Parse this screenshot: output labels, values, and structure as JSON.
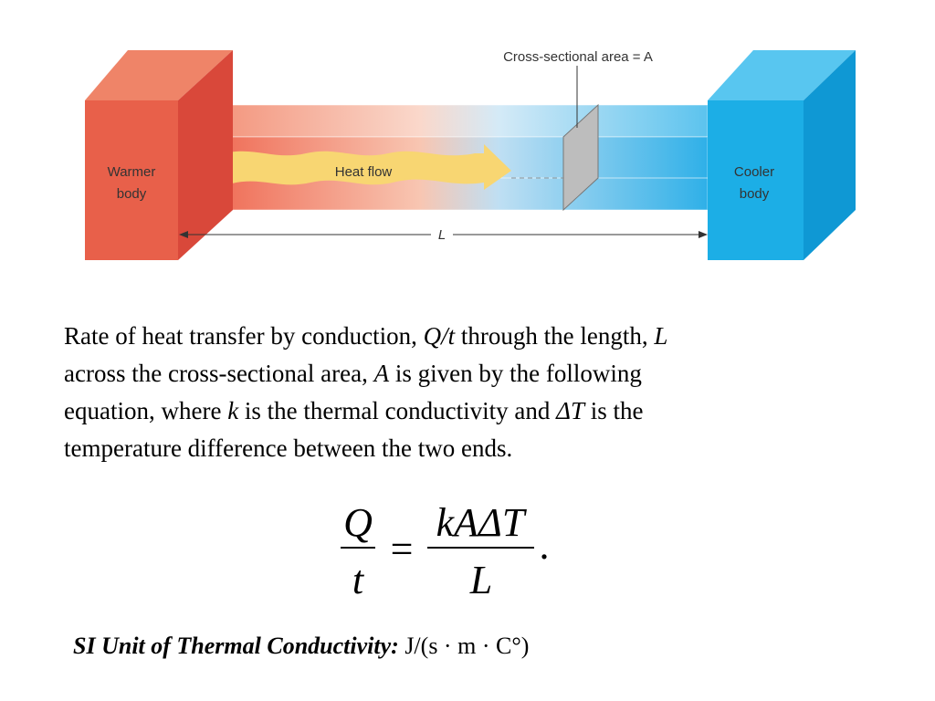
{
  "diagram": {
    "area_label": "Cross-sectional area = A",
    "warmer_label": [
      "Warmer",
      "body"
    ],
    "flow_label": "Heat flow",
    "cooler_label": [
      "Cooler",
      "body"
    ],
    "length_label": "L"
  },
  "paragraph": {
    "lines": [
      [
        "Rate of heat transfer by conduction, ",
        "Q/t",
        " through the length, ",
        "L"
      ],
      [
        "across the cross-sectional area, ",
        "A",
        " is given by the following"
      ],
      [
        "equation, where ",
        "k",
        " is the thermal conductivity and ",
        "ΔT",
        " is the"
      ],
      [
        "temperature difference between the two ends."
      ]
    ]
  },
  "equation": {
    "left_numerator": "Q",
    "left_denominator": "t",
    "equals": "=",
    "right_numerator": "kAΔT",
    "right_denominator": "L",
    "end": "."
  },
  "si_unit": {
    "label": "SI Unit of Thermal Conductivity:",
    "unit": "J/(s · m · C°)"
  }
}
